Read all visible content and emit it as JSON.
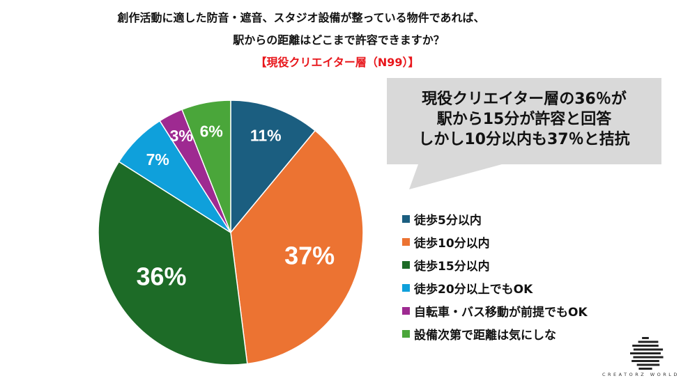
{
  "title": {
    "line1": "創作活動に適した防音・遮音、スタジオ設備が整っている物件であれば、",
    "line2": "駅からの距離はどこまで許容できますか？",
    "segment": "【現役クリエイター層（N99）】"
  },
  "callout": {
    "line1": "現役クリエイター層の36％が",
    "line2": "駅から15分が許容と回答",
    "line3": "しかし10分以内も37％と拮抗"
  },
  "chart_data": {
    "type": "pie",
    "categories": [
      "徒歩5分以内",
      "徒歩10分以内",
      "徒歩15分以内",
      "徒歩20分以上でもOK",
      "自転車・バス移動が前提でもOK",
      "設備次第で距離は気にしな"
    ],
    "values": [
      11,
      37,
      36,
      7,
      3,
      6
    ],
    "data_labels": [
      "11%",
      "37%",
      "36%",
      "7%",
      "3%",
      "6%"
    ],
    "colors": [
      "#1b5e80",
      "#ec7332",
      "#1d6b27",
      "#0fa0db",
      "#9e2a91",
      "#4aa63a"
    ],
    "legend_position": "right",
    "start": "top, clockwise"
  },
  "logo": {
    "text": "CREATORZ WORLD"
  }
}
